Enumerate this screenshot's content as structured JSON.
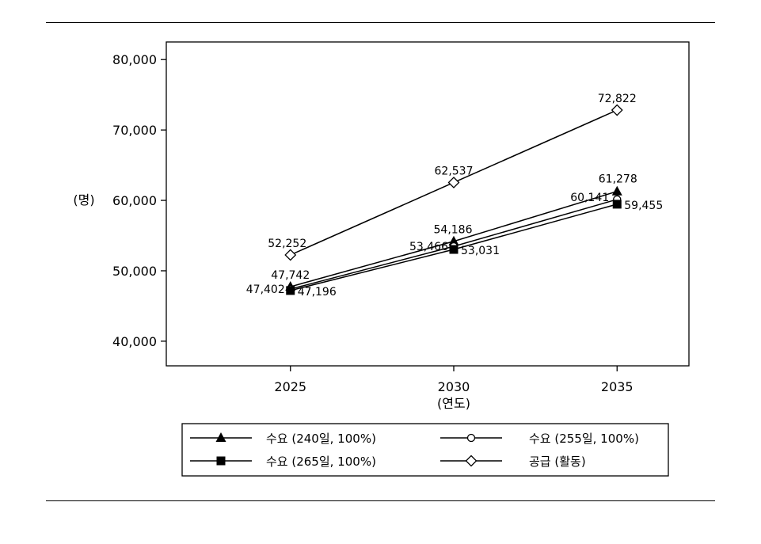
{
  "chart_data": {
    "type": "line",
    "xlabel": "(연도)",
    "ylabel": "(명)",
    "categories": [
      "2025",
      "2030",
      "2035"
    ],
    "x": [
      2025,
      2030,
      2035
    ],
    "xlim": [
      2021.2,
      2037.2
    ],
    "ylim": [
      36500,
      82500
    ],
    "yticks": [
      40000,
      50000,
      60000,
      70000,
      80000
    ],
    "ytick_labels": [
      "40,000",
      "50,000",
      "60,000",
      "70,000",
      "80,000"
    ],
    "grid": false,
    "legend_position": "bottom",
    "series": [
      {
        "name": "수요 (240일, 100%)",
        "marker": "triangle",
        "values": [
          47742,
          54186,
          61278
        ],
        "labels": [
          "47,742",
          "54,186",
          "61,278"
        ]
      },
      {
        "name": "수요 (255일, 100%)",
        "marker": "circle",
        "values": [
          47402,
          53466,
          60141
        ],
        "labels": [
          "47,402",
          "53,466",
          "60,141"
        ]
      },
      {
        "name": "수요 (265일, 100%)",
        "marker": "square",
        "values": [
          47196,
          53031,
          59455
        ],
        "labels": [
          "47,196",
          "53,031",
          "59,455"
        ]
      },
      {
        "name": "공급 (활동)",
        "marker": "diamond",
        "values": [
          52252,
          62537,
          72822
        ],
        "labels": [
          "52,252",
          "62,537",
          "72,822"
        ]
      }
    ]
  }
}
